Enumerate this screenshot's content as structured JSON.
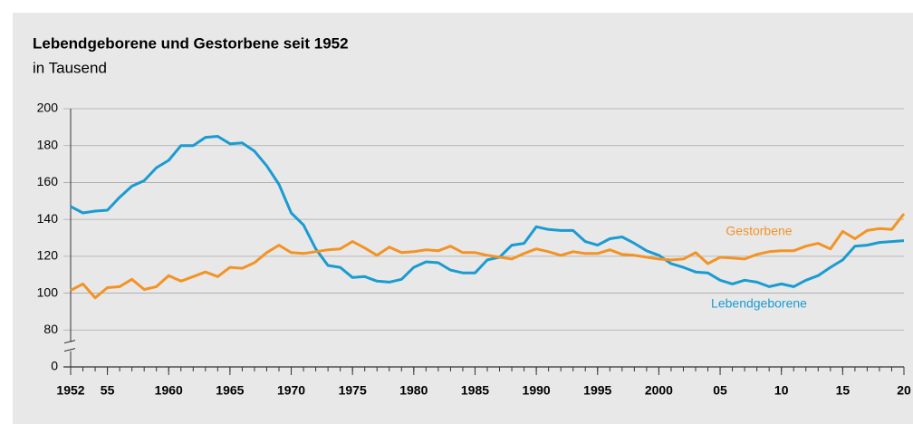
{
  "chart_data": {
    "type": "line",
    "title": "Lebendgeborene und Gestorbene seit 1952",
    "subtitle": "in Tausend",
    "x": [
      1952,
      1953,
      1954,
      1955,
      1956,
      1957,
      1958,
      1959,
      1960,
      1961,
      1962,
      1963,
      1964,
      1965,
      1966,
      1967,
      1968,
      1969,
      1970,
      1971,
      1972,
      1973,
      1974,
      1975,
      1976,
      1977,
      1978,
      1979,
      1980,
      1981,
      1982,
      1983,
      1984,
      1985,
      1986,
      1987,
      1988,
      1989,
      1990,
      1991,
      1992,
      1993,
      1994,
      1995,
      1996,
      1997,
      1998,
      1999,
      2000,
      2001,
      2002,
      2003,
      2004,
      2005,
      2006,
      2007,
      2008,
      2009,
      2010,
      2011,
      2012,
      2013,
      2014,
      2015,
      2016,
      2017,
      2018,
      2019,
      2020
    ],
    "series": [
      {
        "name": "Lebendgeborene",
        "color": "#1a9bd1",
        "values": [
          147,
          143.5,
          144.5,
          145,
          152,
          158,
          161,
          168,
          172,
          180,
          180,
          184.5,
          185,
          181,
          181.5,
          177,
          169,
          159,
          143.5,
          137,
          124,
          115,
          114,
          108.5,
          109,
          106.5,
          106,
          107.5,
          114,
          117,
          116.5,
          112.5,
          111,
          111,
          118,
          119.5,
          126,
          127,
          136,
          134.5,
          134,
          134,
          128,
          126,
          129.5,
          130.5,
          127,
          123,
          120.5,
          116,
          114,
          111.5,
          111,
          107,
          105,
          107,
          106,
          103.5,
          105,
          103.5,
          107,
          109.5,
          114,
          118,
          125.5,
          126,
          127.5,
          128,
          128.5
        ]
      },
      {
        "name": "Gestorbene",
        "color": "#f39325",
        "values": [
          101.5,
          105,
          97.5,
          103,
          103.5,
          107.5,
          102,
          103.5,
          109.5,
          106.5,
          109,
          111.5,
          109,
          114,
          113.5,
          116.5,
          122,
          126,
          122,
          121.5,
          122.5,
          123.5,
          124,
          128,
          124.5,
          120.5,
          125,
          122,
          122.5,
          123.5,
          123,
          125.5,
          122,
          122,
          120.5,
          119.5,
          118.5,
          121.5,
          124,
          122.5,
          120.5,
          122.5,
          121.5,
          121.5,
          123.5,
          121,
          120.5,
          119.5,
          118.5,
          118,
          118.5,
          122,
          116,
          119.5,
          119,
          118.5,
          121,
          122.5,
          123,
          123,
          125.5,
          127,
          124,
          133.5,
          129.5,
          134,
          135,
          134.5,
          143
        ]
      }
    ],
    "xlim": [
      1952,
      2020
    ],
    "xticks": [
      {
        "value": 1952,
        "label": "1952"
      },
      {
        "value": 1955,
        "label": "55"
      },
      1960,
      1965,
      1970,
      1975,
      1980,
      1985,
      1990,
      1995,
      2000,
      {
        "value": 2005,
        "label": "05"
      },
      {
        "value": 2010,
        "label": "10"
      },
      {
        "value": 2015,
        "label": "15"
      },
      {
        "value": 2020,
        "label": "20"
      }
    ],
    "ylim": [
      0,
      200
    ],
    "yticks": [
      0,
      80,
      100,
      120,
      140,
      160,
      180,
      200
    ],
    "axis_break": true,
    "grid": true
  }
}
